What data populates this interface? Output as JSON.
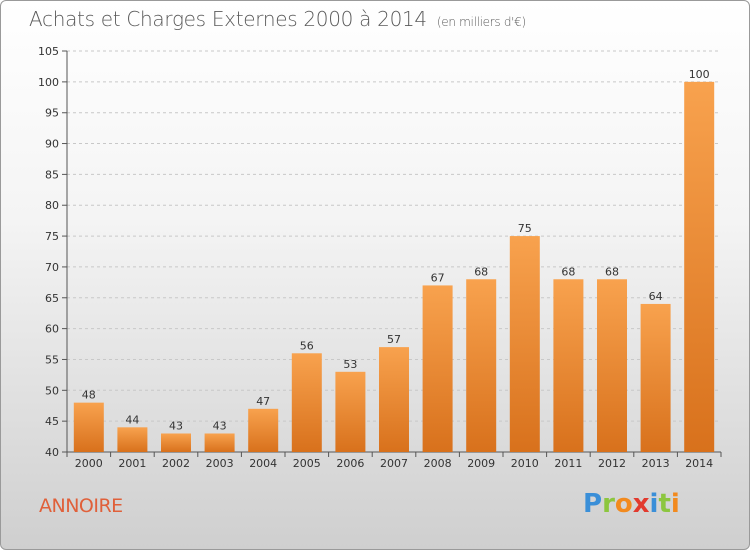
{
  "header": {
    "title": "Achats et Charges Externes 2000 à 2014",
    "subtitle": "(en milliers d'€)"
  },
  "footer": {
    "commune": "ANNOIRE",
    "logo_letters": [
      {
        "char": "P",
        "color": "#3a8fd8"
      },
      {
        "char": "r",
        "color": "#8cc63f"
      },
      {
        "char": "o",
        "color": "#f28a1e"
      },
      {
        "char": "x",
        "color": "#e23a2e"
      },
      {
        "char": "i",
        "color": "#3a8fd8"
      },
      {
        "char": "t",
        "color": "#8cc63f"
      },
      {
        "char": "i",
        "color": "#f28a1e"
      }
    ]
  },
  "chart_data": {
    "type": "bar",
    "categories": [
      "2000",
      "2001",
      "2002",
      "2003",
      "2004",
      "2005",
      "2006",
      "2007",
      "2008",
      "2009",
      "2010",
      "2011",
      "2012",
      "2013",
      "2014"
    ],
    "values": [
      48,
      44,
      43,
      43,
      47,
      56,
      53,
      57,
      67,
      68,
      75,
      68,
      68,
      64,
      100
    ],
    "ylim": [
      40,
      105
    ],
    "yticks": [
      40,
      45,
      50,
      55,
      60,
      65,
      70,
      75,
      80,
      85,
      90,
      95,
      100,
      105
    ],
    "grid": true,
    "bar_color_top": "#f8a24e",
    "bar_color_bottom": "#d8711c"
  }
}
